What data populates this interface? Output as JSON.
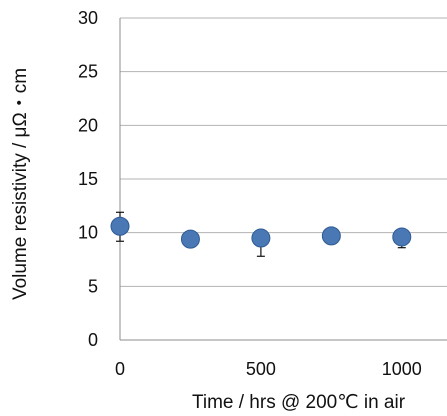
{
  "chart_data": {
    "type": "scatter",
    "title": "",
    "xlabel": "Time / hrs @ 200℃ in air",
    "ylabel": "Volume resistivity / μΩ・cm",
    "xlim": [
      0,
      1125
    ],
    "ylim": [
      0,
      30
    ],
    "x_ticks": [
      "0",
      "500",
      "1000"
    ],
    "x_tick_values": [
      0,
      500,
      1000
    ],
    "y_ticks": [
      "0",
      "5",
      "10",
      "15",
      "20",
      "25",
      "30"
    ],
    "y_tick_values": [
      0,
      5,
      10,
      15,
      20,
      25,
      30
    ],
    "grid": "horizontal",
    "legend": "none",
    "marker_color": "#4a78b5",
    "marker_edge_color": "#2e5b94",
    "series": [
      {
        "x": [
          0,
          250,
          500,
          750,
          1000
        ],
        "y": [
          10.6,
          9.4,
          9.5,
          9.7,
          9.6
        ],
        "error_low": [
          1.4,
          0.3,
          1.7,
          0.3,
          1.0
        ],
        "error_high": [
          1.3,
          0.3,
          0.3,
          0.3,
          0.3
        ]
      }
    ]
  }
}
